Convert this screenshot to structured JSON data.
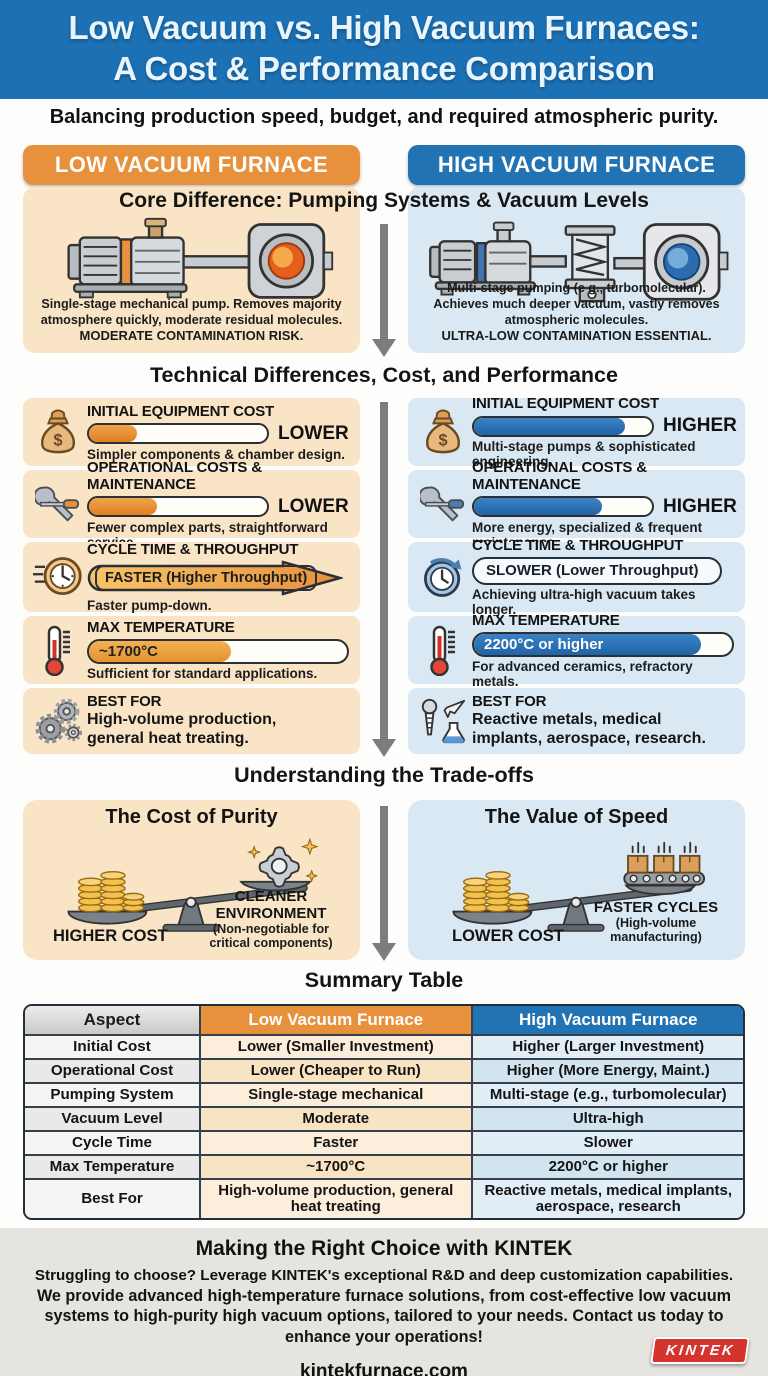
{
  "title": {
    "line1": "Low Vacuum vs. High Vacuum Furnaces:",
    "line2": "A Cost & Performance Comparison"
  },
  "subtitle": "Balancing production speed, budget, and required atmospheric purity.",
  "columns": {
    "low_header": "LOW VACUUM FURNACE",
    "high_header": "HIGH VACUUM FURNACE"
  },
  "core": {
    "section_title": "Core Difference: Pumping Systems & Vacuum Levels",
    "low_desc": "Single-stage mechanical pump. Removes majority atmosphere quickly, moderate residual molecules.",
    "low_bold": "MODERATE CONTAMINATION RISK.",
    "high_desc": "Multi-stage pumping (e g., turbomolecular). Achieves much deeper vacuum, vastly removes atmospheric molecules.",
    "high_bold": "ULTRA-LOW CONTAMINATION ESSENTIAL."
  },
  "tech": {
    "section_title": "Technical Differences, Cost, and Performance",
    "low": [
      {
        "title": "INITIAL EQUIPMENT COST",
        "fill": 27,
        "label": "LOWER",
        "desc": "Simpler components & chamber design."
      },
      {
        "title": "OPERATIONAL COSTS & MAINTENANCE",
        "fill": 38,
        "label": "LOWER",
        "desc": "Fewer complex parts, straightforward service."
      },
      {
        "title": "CYCLE TIME & THROUGHPUT",
        "label": "FASTER (Higher Throughput)",
        "desc": "Faster pump-down."
      },
      {
        "title": "MAX TEMPERATURE",
        "fill": 55,
        "label": "~1700°C",
        "desc": "Sufficient for standard applications."
      },
      {
        "title": "BEST FOR",
        "desc": "High-volume production, general heat treating."
      }
    ],
    "high": [
      {
        "title": "INITIAL EQUIPMENT COST",
        "fill": 85,
        "label": "HIGHER",
        "desc": "Multi-stage pumps & sophisticated engineering."
      },
      {
        "title": "OPERATIONAL COSTS & MAINTENANCE",
        "fill": 72,
        "label": "HIGHER",
        "desc": "More energy, specialized & frequent maintenance."
      },
      {
        "title": "CYCLE TIME & THROUGHPUT",
        "label": "SLOWER (Lower Throughput)",
        "desc": "Achieving ultra-high vacuum takes longer."
      },
      {
        "title": "MAX TEMPERATURE",
        "fill": 88,
        "label": "2200°C or higher",
        "desc": "For advanced ceramics, refractory metals."
      },
      {
        "title": "BEST FOR",
        "desc": "Reactive metals, medical implants, aerospace, research."
      }
    ]
  },
  "tradeoffs": {
    "section_title": "Understanding the Trade-offs",
    "low": {
      "title": "The Cost of Purity",
      "left_label": "HIGHER COST",
      "right_label": "CLEANER ENVIRONMENT",
      "right_sub": "(Non-negotiable for critical components)"
    },
    "high": {
      "title": "The Value of Speed",
      "left_label": "LOWER COST",
      "right_label": "FASTER CYCLES",
      "right_sub": "(High-volume manufacturing)"
    }
  },
  "summary": {
    "section_title": "Summary Table",
    "headers": [
      "Aspect",
      "Low Vacuum Furnace",
      "High Vacuum Furnace"
    ],
    "rows": [
      [
        "Initial Cost",
        "Lower (Smaller Investment)",
        "Higher (Larger Investment)"
      ],
      [
        "Operational Cost",
        "Lower (Cheaper to Run)",
        "Higher (More Energy, Maint.)"
      ],
      [
        "Pumping System",
        "Single-stage mechanical",
        "Multi-stage (e.g., turbomolecular)"
      ],
      [
        "Vacuum Level",
        "Moderate",
        "Ultra-high"
      ],
      [
        "Cycle Time",
        "Faster",
        "Slower"
      ],
      [
        "Max Temperature",
        "~1700°C",
        "2200°C or higher"
      ],
      [
        "Best For",
        "High-volume production, general heat treating",
        "Reactive metals, medical implants, aerospace, research"
      ]
    ]
  },
  "footer": {
    "title": "Making the Right Choice with KINTEK",
    "bold_line": "Struggling to choose? Leverage KINTEK's exceptional R&D and deep customization capabilities.",
    "body": "We provide advanced high-temperature furnace solutions, from cost-effective low vacuum systems to high-purity high vacuum options, tailored to your needs. Contact us today to enhance your operations!",
    "website": "kintekfurnace.com",
    "logo": "KINTEK"
  },
  "icons": {
    "dollar": "$"
  },
  "colors": {
    "header_blue": "#1c70b4",
    "accent_orange": "#e8913c",
    "accent_blue": "#2173b4",
    "panel_orange": "#fae4c6",
    "panel_blue": "#d9e8f3",
    "logo_red": "#d5342e",
    "arrow_gray": "#7d7d7d"
  }
}
